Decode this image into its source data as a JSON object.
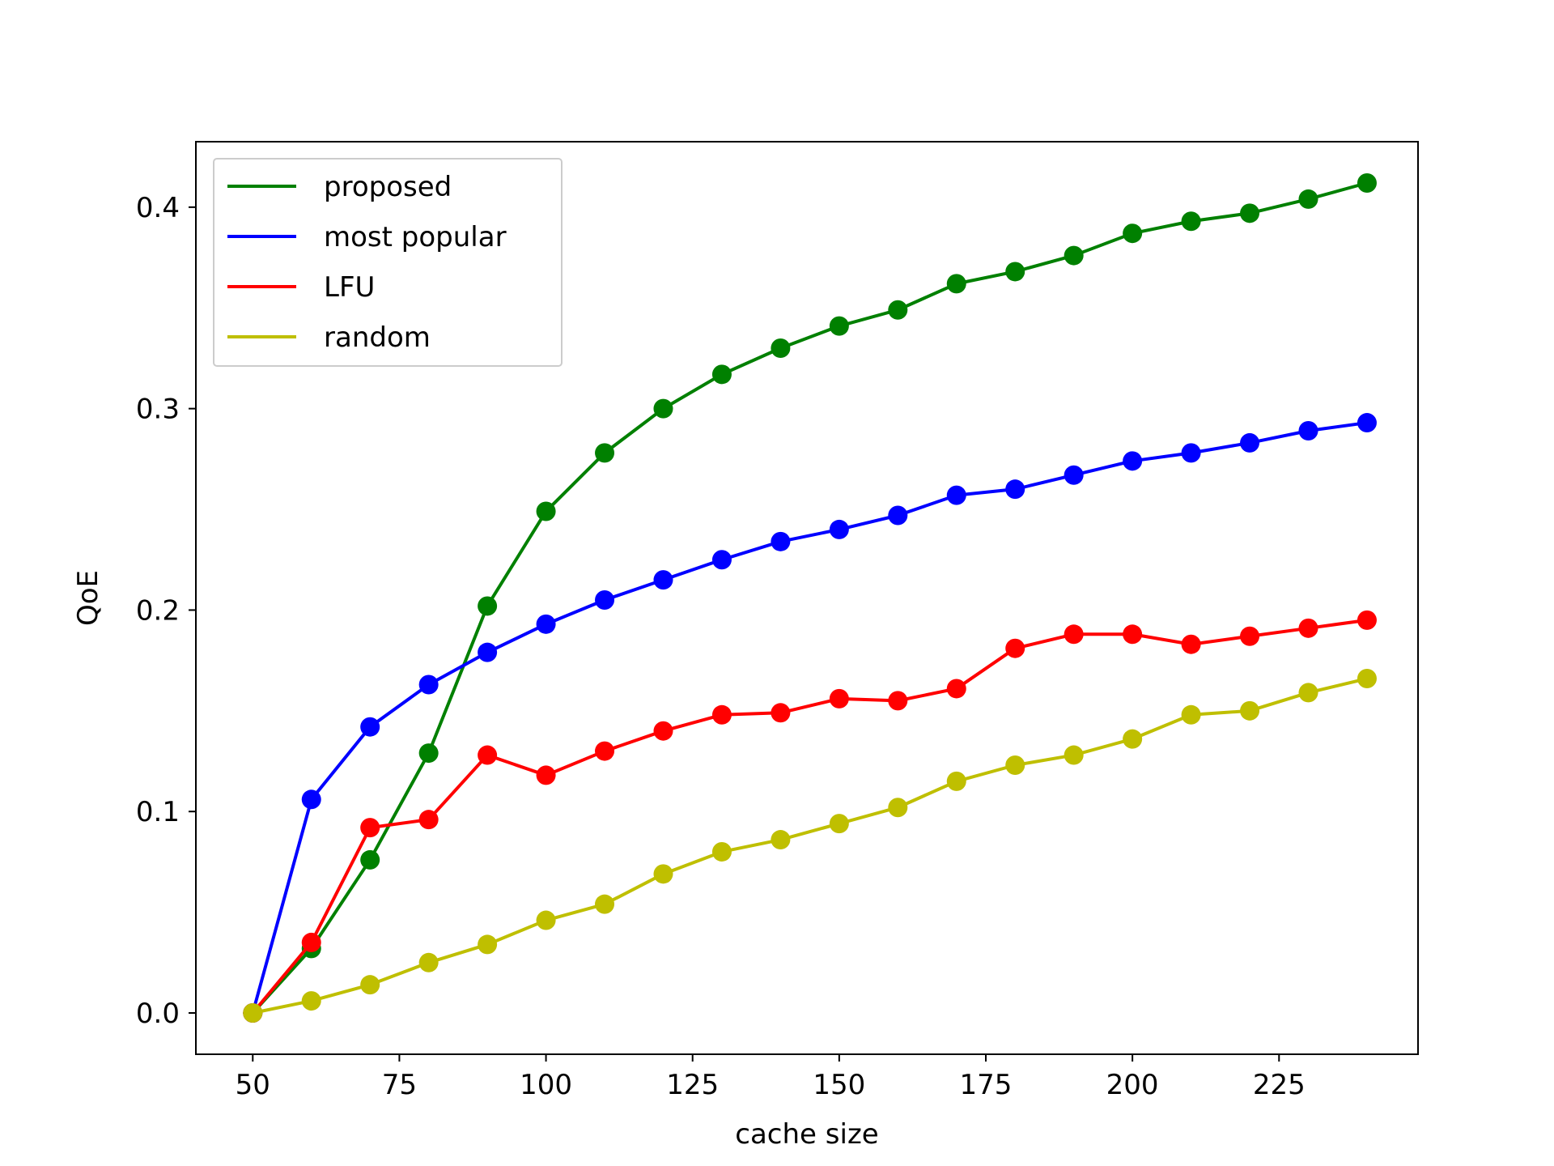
{
  "chart_data": {
    "type": "line",
    "xlabel": "cache size",
    "ylabel": "QoE",
    "xlim": [
      40.3,
      248.7
    ],
    "ylim": [
      -0.0205,
      0.4325
    ],
    "x_ticks": [
      50,
      75,
      100,
      125,
      150,
      175,
      200,
      225
    ],
    "x_tick_labels": [
      "50",
      "75",
      "100",
      "125",
      "150",
      "175",
      "200",
      "225"
    ],
    "y_ticks": [
      0.0,
      0.1,
      0.2,
      0.3,
      0.4
    ],
    "y_tick_labels": [
      "0.0",
      "0.1",
      "0.2",
      "0.3",
      "0.4"
    ],
    "grid": false,
    "legend_position": "upper-left",
    "x": [
      50,
      60,
      70,
      80,
      90,
      100,
      110,
      120,
      130,
      140,
      150,
      160,
      170,
      180,
      190,
      200,
      210,
      220,
      230,
      240
    ],
    "series": [
      {
        "name": "proposed",
        "color": "#008000",
        "marker": "circle",
        "values": [
          0.0,
          0.032,
          0.076,
          0.129,
          0.202,
          0.249,
          0.278,
          0.3,
          0.317,
          0.33,
          0.341,
          0.349,
          0.362,
          0.368,
          0.376,
          0.387,
          0.393,
          0.397,
          0.404,
          0.412
        ]
      },
      {
        "name": "most popular",
        "color": "#0000ff",
        "marker": "circle",
        "values": [
          0.0,
          0.106,
          0.142,
          0.163,
          0.179,
          0.193,
          0.205,
          0.215,
          0.225,
          0.234,
          0.24,
          0.247,
          0.257,
          0.26,
          0.267,
          0.274,
          0.278,
          0.283,
          0.289,
          0.293
        ]
      },
      {
        "name": "LFU",
        "color": "#ff0000",
        "marker": "circle",
        "values": [
          0.0,
          0.035,
          0.092,
          0.096,
          0.128,
          0.118,
          0.13,
          0.14,
          0.148,
          0.149,
          0.156,
          0.155,
          0.161,
          0.181,
          0.188,
          0.188,
          0.183,
          0.187,
          0.191,
          0.195
        ]
      },
      {
        "name": "random",
        "color": "#bfbf00",
        "marker": "circle",
        "values": [
          0.0,
          0.006,
          0.014,
          0.025,
          0.034,
          0.046,
          0.054,
          0.069,
          0.08,
          0.086,
          0.094,
          0.102,
          0.115,
          0.123,
          0.128,
          0.136,
          0.148,
          0.15,
          0.159,
          0.166
        ]
      }
    ]
  }
}
